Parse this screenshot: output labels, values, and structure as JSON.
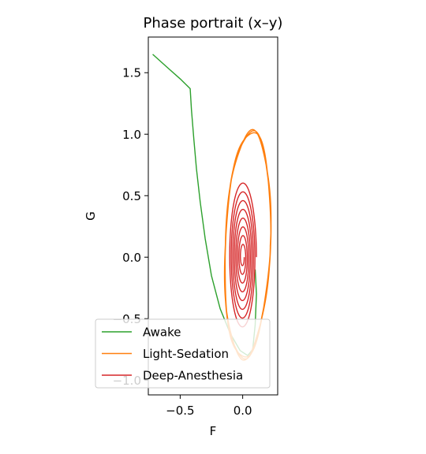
{
  "chart_data": {
    "type": "line",
    "title": "Phase portrait (x–y)",
    "xlabel": "F",
    "ylabel": "G",
    "xlim": [
      -0.755,
      0.28
    ],
    "ylim": [
      -1.12,
      1.79
    ],
    "xticks": [
      -0.5,
      0.0
    ],
    "xtick_labels": [
      "−0.5",
      "0.0"
    ],
    "yticks": [
      1.5,
      1.0,
      0.5,
      0.0,
      -0.5,
      -1.0
    ],
    "ytick_labels": [
      "1.5",
      "1.0",
      "0.5",
      "0.0",
      "−0.5",
      "−1.0"
    ],
    "grid": false,
    "legend_position": "lower left",
    "series": [
      {
        "name": "Awake",
        "color": "#2ca02c",
        "shape": "trajectory",
        "points": [
          [
            -0.72,
            1.65
          ],
          [
            -0.6,
            1.54
          ],
          [
            -0.5,
            1.45
          ],
          [
            -0.42,
            1.37
          ],
          [
            -0.41,
            1.2
          ],
          [
            -0.39,
            0.95
          ],
          [
            -0.37,
            0.72
          ],
          [
            -0.34,
            0.45
          ],
          [
            -0.3,
            0.15
          ],
          [
            -0.25,
            -0.15
          ],
          [
            -0.18,
            -0.42
          ],
          [
            -0.1,
            -0.62
          ],
          [
            -0.02,
            -0.76
          ],
          [
            0.04,
            -0.8
          ],
          [
            0.08,
            -0.75
          ],
          [
            0.1,
            -0.55
          ],
          [
            0.11,
            -0.3
          ],
          [
            0.1,
            -0.1
          ]
        ]
      },
      {
        "name": "Light-Sedation",
        "color": "#ff7f0e",
        "shape": "limit-cycle",
        "cycle": {
          "center": [
            0.04,
            0.1
          ],
          "rx": 0.18,
          "ry": 0.92,
          "tilt": 0.08,
          "loops": 3
        }
      },
      {
        "name": "Deep-Anesthesia",
        "color": "#d62728",
        "shape": "damped-spiral",
        "spiral": {
          "center": [
            0.0,
            0.0
          ],
          "rx0": 0.11,
          "ry0": 0.62,
          "rx1": 0.012,
          "ry1": 0.05,
          "loops": 8
        }
      }
    ]
  }
}
